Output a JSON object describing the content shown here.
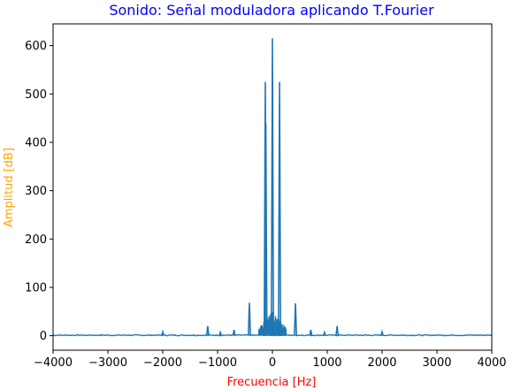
{
  "chart_data": {
    "type": "line",
    "title": "Sonido: Señal moduladora aplicando T.Fourier",
    "xlabel": "Frecuencia [Hz]",
    "ylabel": "Amplitud [dB]",
    "xlim": [
      -4000,
      4000
    ],
    "ylim": [
      -30,
      645
    ],
    "xticks": [
      -4000,
      -3000,
      -2000,
      -1000,
      0,
      1000,
      2000,
      3000,
      4000
    ],
    "xtick_labels": [
      "−4000",
      "−3000",
      "−2000",
      "−1000",
      "0",
      "1000",
      "2000",
      "3000",
      "4000"
    ],
    "yticks": [
      0,
      100,
      200,
      300,
      400,
      500,
      600
    ],
    "ytick_labels": [
      "0",
      "100",
      "200",
      "300",
      "400",
      "500",
      "600"
    ],
    "grid": false,
    "colors": {
      "line": "#1f77b4",
      "title": "#0000ff",
      "xlabel": "#ff0000",
      "ylabel": "#ffa500"
    },
    "noise_floor": 2,
    "cluster": {
      "from": -250,
      "to": 250,
      "amplitude": 50
    },
    "peaks": [
      {
        "x": -2000,
        "y": 8
      },
      {
        "x": -1180,
        "y": 20
      },
      {
        "x": -950,
        "y": 7
      },
      {
        "x": -700,
        "y": 12
      },
      {
        "x": -420,
        "y": 68
      },
      {
        "x": -130,
        "y": 525
      },
      {
        "x": -120,
        "y": 440
      },
      {
        "x": 0,
        "y": 615
      },
      {
        "x": 130,
        "y": 525
      },
      {
        "x": 420,
        "y": 67
      },
      {
        "x": 700,
        "y": 12
      },
      {
        "x": 950,
        "y": 7
      },
      {
        "x": 1180,
        "y": 20
      },
      {
        "x": 2000,
        "y": 8
      }
    ]
  }
}
